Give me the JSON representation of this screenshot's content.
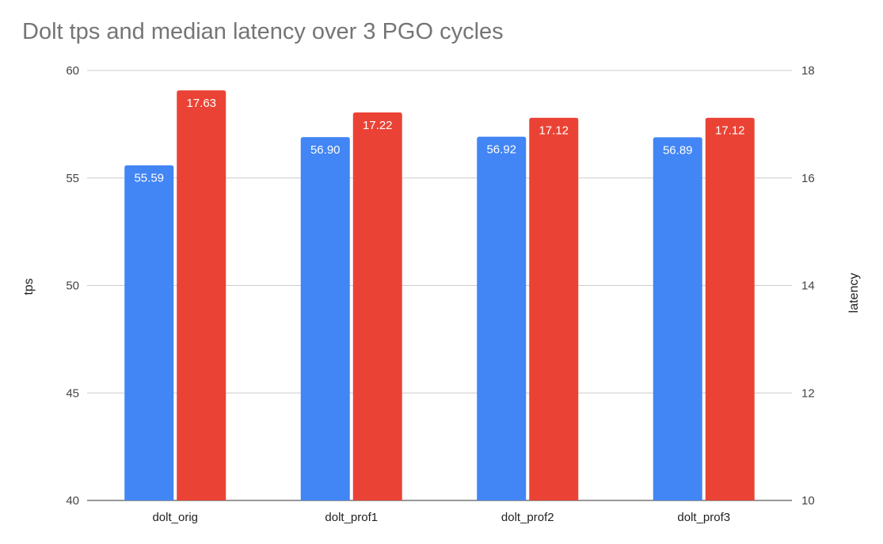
{
  "chart_data": {
    "type": "bar",
    "title": "Dolt tps and median latency over 3 PGO cycles",
    "categories": [
      "dolt_orig",
      "dolt_prof1",
      "dolt_prof2",
      "dolt_prof3"
    ],
    "series": [
      {
        "name": "tps",
        "axis": "left",
        "color": "#4285f4",
        "values": [
          55.59,
          56.9,
          56.92,
          56.89
        ],
        "labels": [
          "55.59",
          "56.90",
          "56.92",
          "56.89"
        ]
      },
      {
        "name": "latency",
        "axis": "right",
        "color": "#ea4335",
        "values": [
          17.63,
          17.22,
          17.12,
          17.12
        ],
        "labels": [
          "17.63",
          "17.22",
          "17.12",
          "17.12"
        ]
      }
    ],
    "ylabel": "tps",
    "y2label": "latency",
    "ylim": [
      40,
      60
    ],
    "y2lim": [
      10,
      18
    ],
    "yticks": [
      "60",
      "55",
      "50",
      "45",
      "40"
    ],
    "y2ticks": [
      "18",
      "16",
      "14",
      "12",
      "10"
    ],
    "grid": true,
    "legend": "none"
  }
}
